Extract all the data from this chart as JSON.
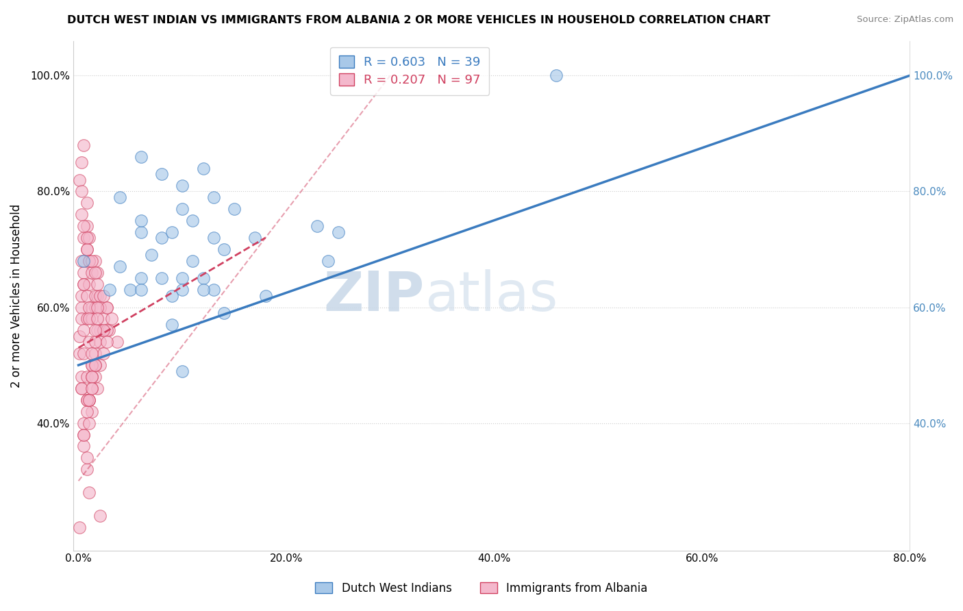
{
  "title": "DUTCH WEST INDIAN VS IMMIGRANTS FROM ALBANIA 2 OR MORE VEHICLES IN HOUSEHOLD CORRELATION CHART",
  "source": "Source: ZipAtlas.com",
  "ylabel": "2 or more Vehicles in Household",
  "xlabel": "",
  "xlim": [
    -0.005,
    0.8
  ],
  "ylim": [
    0.18,
    1.06
  ],
  "xtick_labels": [
    "0.0%",
    "20.0%",
    "40.0%",
    "60.0%",
    "80.0%"
  ],
  "xtick_vals": [
    0.0,
    0.2,
    0.4,
    0.6,
    0.8
  ],
  "ytick_labels": [
    "40.0%",
    "60.0%",
    "80.0%",
    "100.0%"
  ],
  "ytick_vals": [
    0.4,
    0.6,
    0.8,
    1.0
  ],
  "blue_R": 0.603,
  "blue_N": 39,
  "pink_R": 0.207,
  "pink_N": 97,
  "blue_label": "Dutch West Indians",
  "pink_label": "Immigrants from Albania",
  "blue_color": "#a8c8e8",
  "blue_line_color": "#3a7bbf",
  "pink_color": "#f4b8cc",
  "pink_line_color": "#d04060",
  "watermark_zip": "ZIP",
  "watermark_atlas": "atlas",
  "blue_points_x": [
    0.005,
    0.08,
    0.04,
    0.06,
    0.1,
    0.12,
    0.06,
    0.08,
    0.04,
    0.03,
    0.07,
    0.1,
    0.11,
    0.09,
    0.13,
    0.14,
    0.17,
    0.11,
    0.1,
    0.09,
    0.06,
    0.13,
    0.15,
    0.23,
    0.25,
    0.09,
    0.1,
    0.08,
    0.05,
    0.06,
    0.12,
    0.13,
    0.14,
    0.12,
    0.18,
    0.1,
    0.24,
    0.46,
    0.06
  ],
  "blue_points_y": [
    0.68,
    0.83,
    0.79,
    0.86,
    0.81,
    0.84,
    0.73,
    0.72,
    0.67,
    0.63,
    0.69,
    0.77,
    0.75,
    0.73,
    0.72,
    0.7,
    0.72,
    0.68,
    0.65,
    0.62,
    0.65,
    0.79,
    0.77,
    0.74,
    0.73,
    0.57,
    0.63,
    0.65,
    0.63,
    0.63,
    0.65,
    0.63,
    0.59,
    0.63,
    0.62,
    0.49,
    0.68,
    1.0,
    0.75
  ],
  "pink_points_x": [
    0.001,
    0.001,
    0.003,
    0.001,
    0.003,
    0.005,
    0.003,
    0.005,
    0.008,
    0.003,
    0.001,
    0.003,
    0.005,
    0.008,
    0.005,
    0.003,
    0.008,
    0.01,
    0.005,
    0.008,
    0.01,
    0.013,
    0.008,
    0.005,
    0.003,
    0.01,
    0.013,
    0.016,
    0.008,
    0.013,
    0.018,
    0.01,
    0.016,
    0.021,
    0.013,
    0.01,
    0.024,
    0.016,
    0.018,
    0.027,
    0.021,
    0.013,
    0.029,
    0.016,
    0.024,
    0.032,
    0.018,
    0.037,
    0.021,
    0.027,
    0.008,
    0.016,
    0.013,
    0.018,
    0.01,
    0.021,
    0.024,
    0.016,
    0.013,
    0.018,
    0.027,
    0.008,
    0.01,
    0.005,
    0.003,
    0.003,
    0.008,
    0.013,
    0.005,
    0.01,
    0.016,
    0.005,
    0.008,
    0.003,
    0.005,
    0.021,
    0.01,
    0.016,
    0.013,
    0.008,
    0.018,
    0.01,
    0.005,
    0.016,
    0.013,
    0.024,
    0.018,
    0.027,
    0.008,
    0.013,
    0.01,
    0.005,
    0.016,
    0.013,
    0.008,
    0.01,
    0.021
  ],
  "pink_points_y": [
    0.22,
    0.55,
    0.68,
    0.82,
    0.85,
    0.88,
    0.62,
    0.72,
    0.78,
    0.6,
    0.52,
    0.48,
    0.66,
    0.7,
    0.64,
    0.58,
    0.74,
    0.68,
    0.56,
    0.62,
    0.72,
    0.66,
    0.58,
    0.52,
    0.46,
    0.64,
    0.6,
    0.68,
    0.48,
    0.58,
    0.62,
    0.54,
    0.6,
    0.56,
    0.5,
    0.44,
    0.58,
    0.52,
    0.56,
    0.6,
    0.54,
    0.42,
    0.56,
    0.48,
    0.52,
    0.58,
    0.46,
    0.54,
    0.5,
    0.56,
    0.44,
    0.62,
    0.48,
    0.66,
    0.44,
    0.6,
    0.56,
    0.5,
    0.46,
    0.64,
    0.6,
    0.7,
    0.68,
    0.74,
    0.8,
    0.76,
    0.72,
    0.68,
    0.64,
    0.6,
    0.66,
    0.38,
    0.42,
    0.46,
    0.4,
    0.62,
    0.58,
    0.54,
    0.5,
    0.44,
    0.6,
    0.4,
    0.36,
    0.56,
    0.52,
    0.62,
    0.58,
    0.54,
    0.32,
    0.48,
    0.44,
    0.38,
    0.5,
    0.46,
    0.34,
    0.28,
    0.24
  ],
  "blue_line_x0": 0.0,
  "blue_line_y0": 0.5,
  "blue_line_x1": 0.8,
  "blue_line_y1": 1.0,
  "pink_line_x0": 0.0,
  "pink_line_y0": 0.6,
  "pink_line_x1": 0.15,
  "pink_line_y1": 0.68
}
